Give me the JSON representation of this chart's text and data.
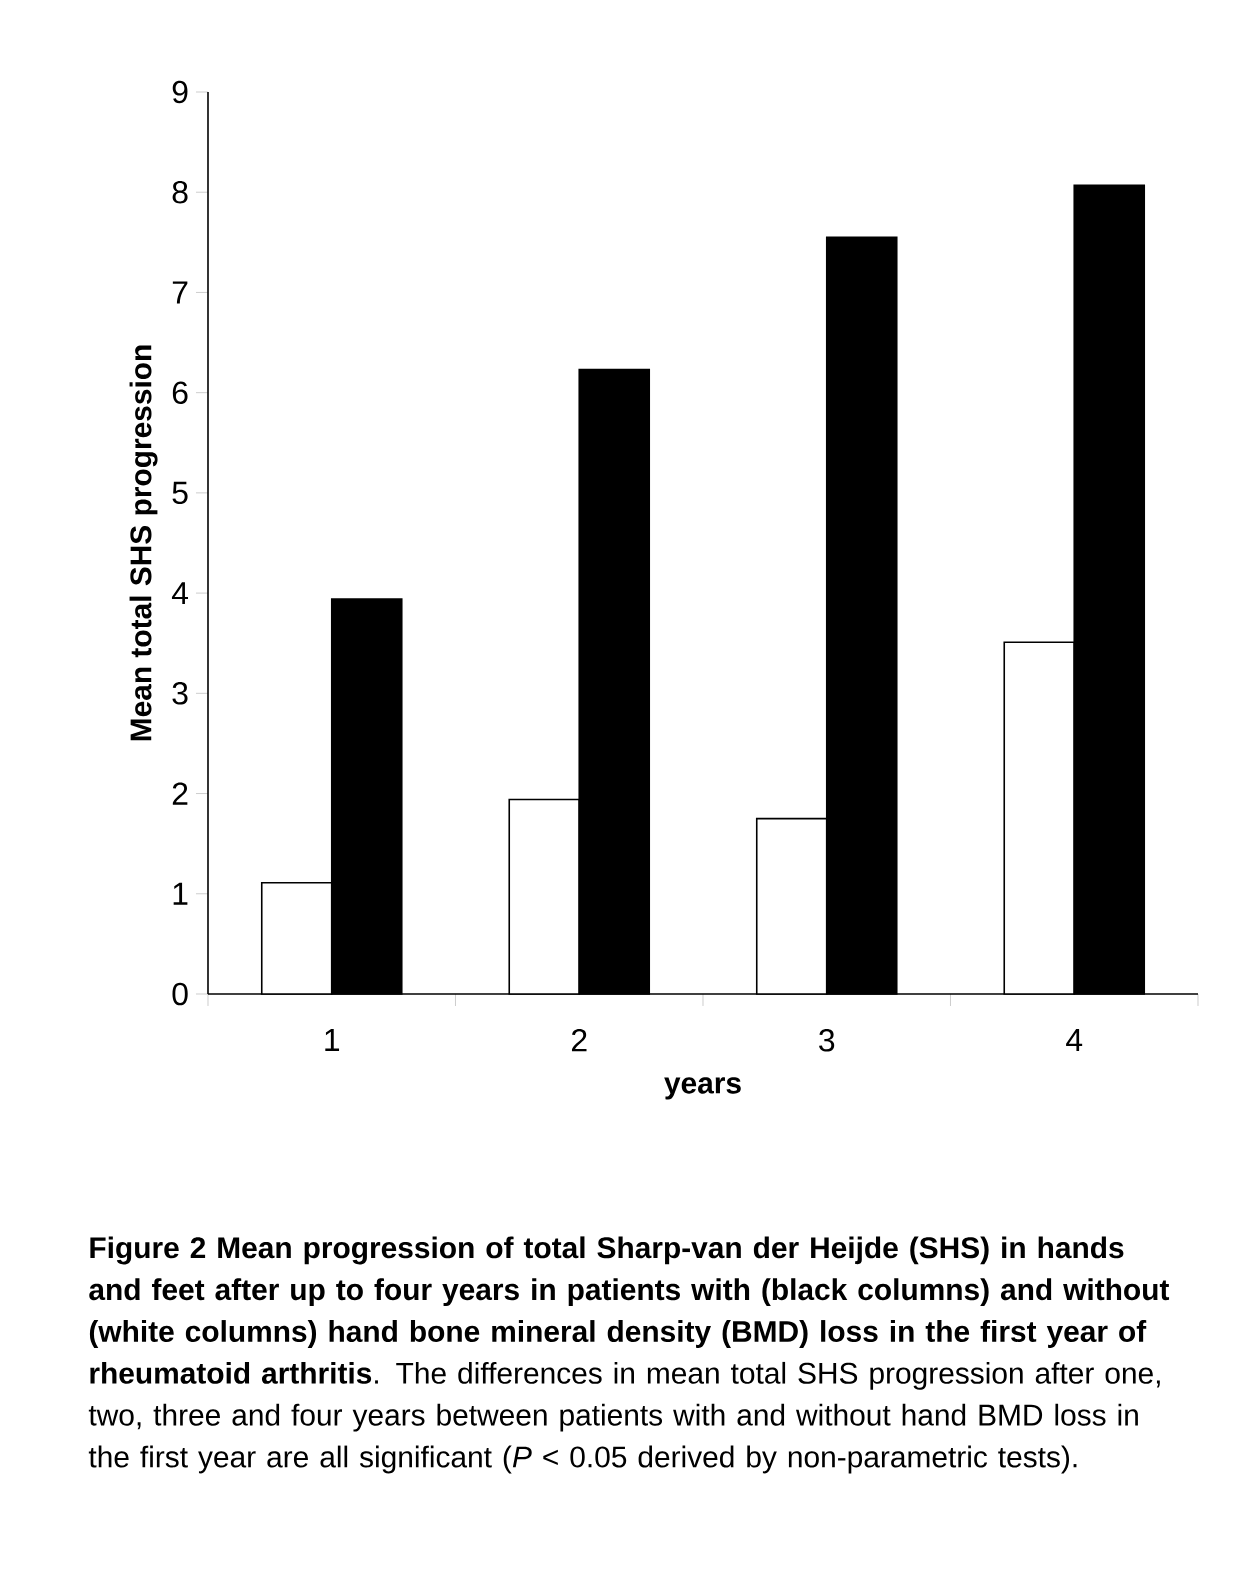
{
  "chart_data": {
    "type": "bar",
    "title": "**Figure 2 Mean progression of total Sharp-van der Heijde (SHS) in hands and feet after up to four years in patients with (black columns) and without (white columns) hand bone mineral density (BMD) loss in the first year of rheumatoid arthritis**. The differences in mean total SHS progression after one, two, three and four years between patients with and without hand BMD loss in the first year are all significant (*P* < 0.05 derived by non-parametric tests).",
    "xlabel": "years",
    "ylabel": "Mean total SHS progression",
    "categories": [
      "1",
      "2",
      "3",
      "4"
    ],
    "series": [
      {
        "color": "#ffffff",
        "values": [
          1.11,
          1.94,
          1.75,
          3.51
        ]
      },
      {
        "color": "#000000",
        "values": [
          3.94,
          6.23,
          7.55,
          8.07
        ]
      }
    ],
    "ylim": [
      0,
      9
    ],
    "yticks": [
      0,
      1,
      2,
      3,
      4,
      5,
      6,
      7,
      8,
      9
    ]
  }
}
